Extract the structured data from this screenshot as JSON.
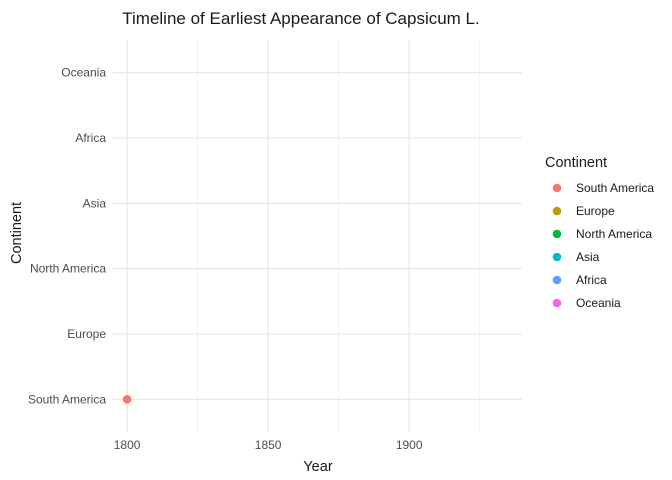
{
  "chart_data": {
    "type": "scatter",
    "title": "Timeline of Earliest Appearance of Capsicum L.",
    "xlabel": "Year",
    "ylabel": "Continent",
    "xlim": [
      1795,
      1940
    ],
    "x_ticks": [
      "1800",
      "1850",
      "1900"
    ],
    "x_tick_values": [
      1800,
      1850,
      1900
    ],
    "categories": [
      "South America",
      "Europe",
      "North America",
      "Asia",
      "Africa",
      "Oceania"
    ],
    "points": [
      {
        "x": 1800,
        "y": "South America"
      }
    ],
    "legend": {
      "title": "Continent",
      "position": "right",
      "entries": [
        {
          "label": "South America",
          "color": "#F8766D"
        },
        {
          "label": "Europe",
          "color": "#B79F00"
        },
        {
          "label": "North America",
          "color": "#00BA38"
        },
        {
          "label": "Asia",
          "color": "#00BFC4"
        },
        {
          "label": "Africa",
          "color": "#619CFF"
        },
        {
          "label": "Oceania",
          "color": "#F564E3"
        }
      ]
    },
    "grid": true
  }
}
